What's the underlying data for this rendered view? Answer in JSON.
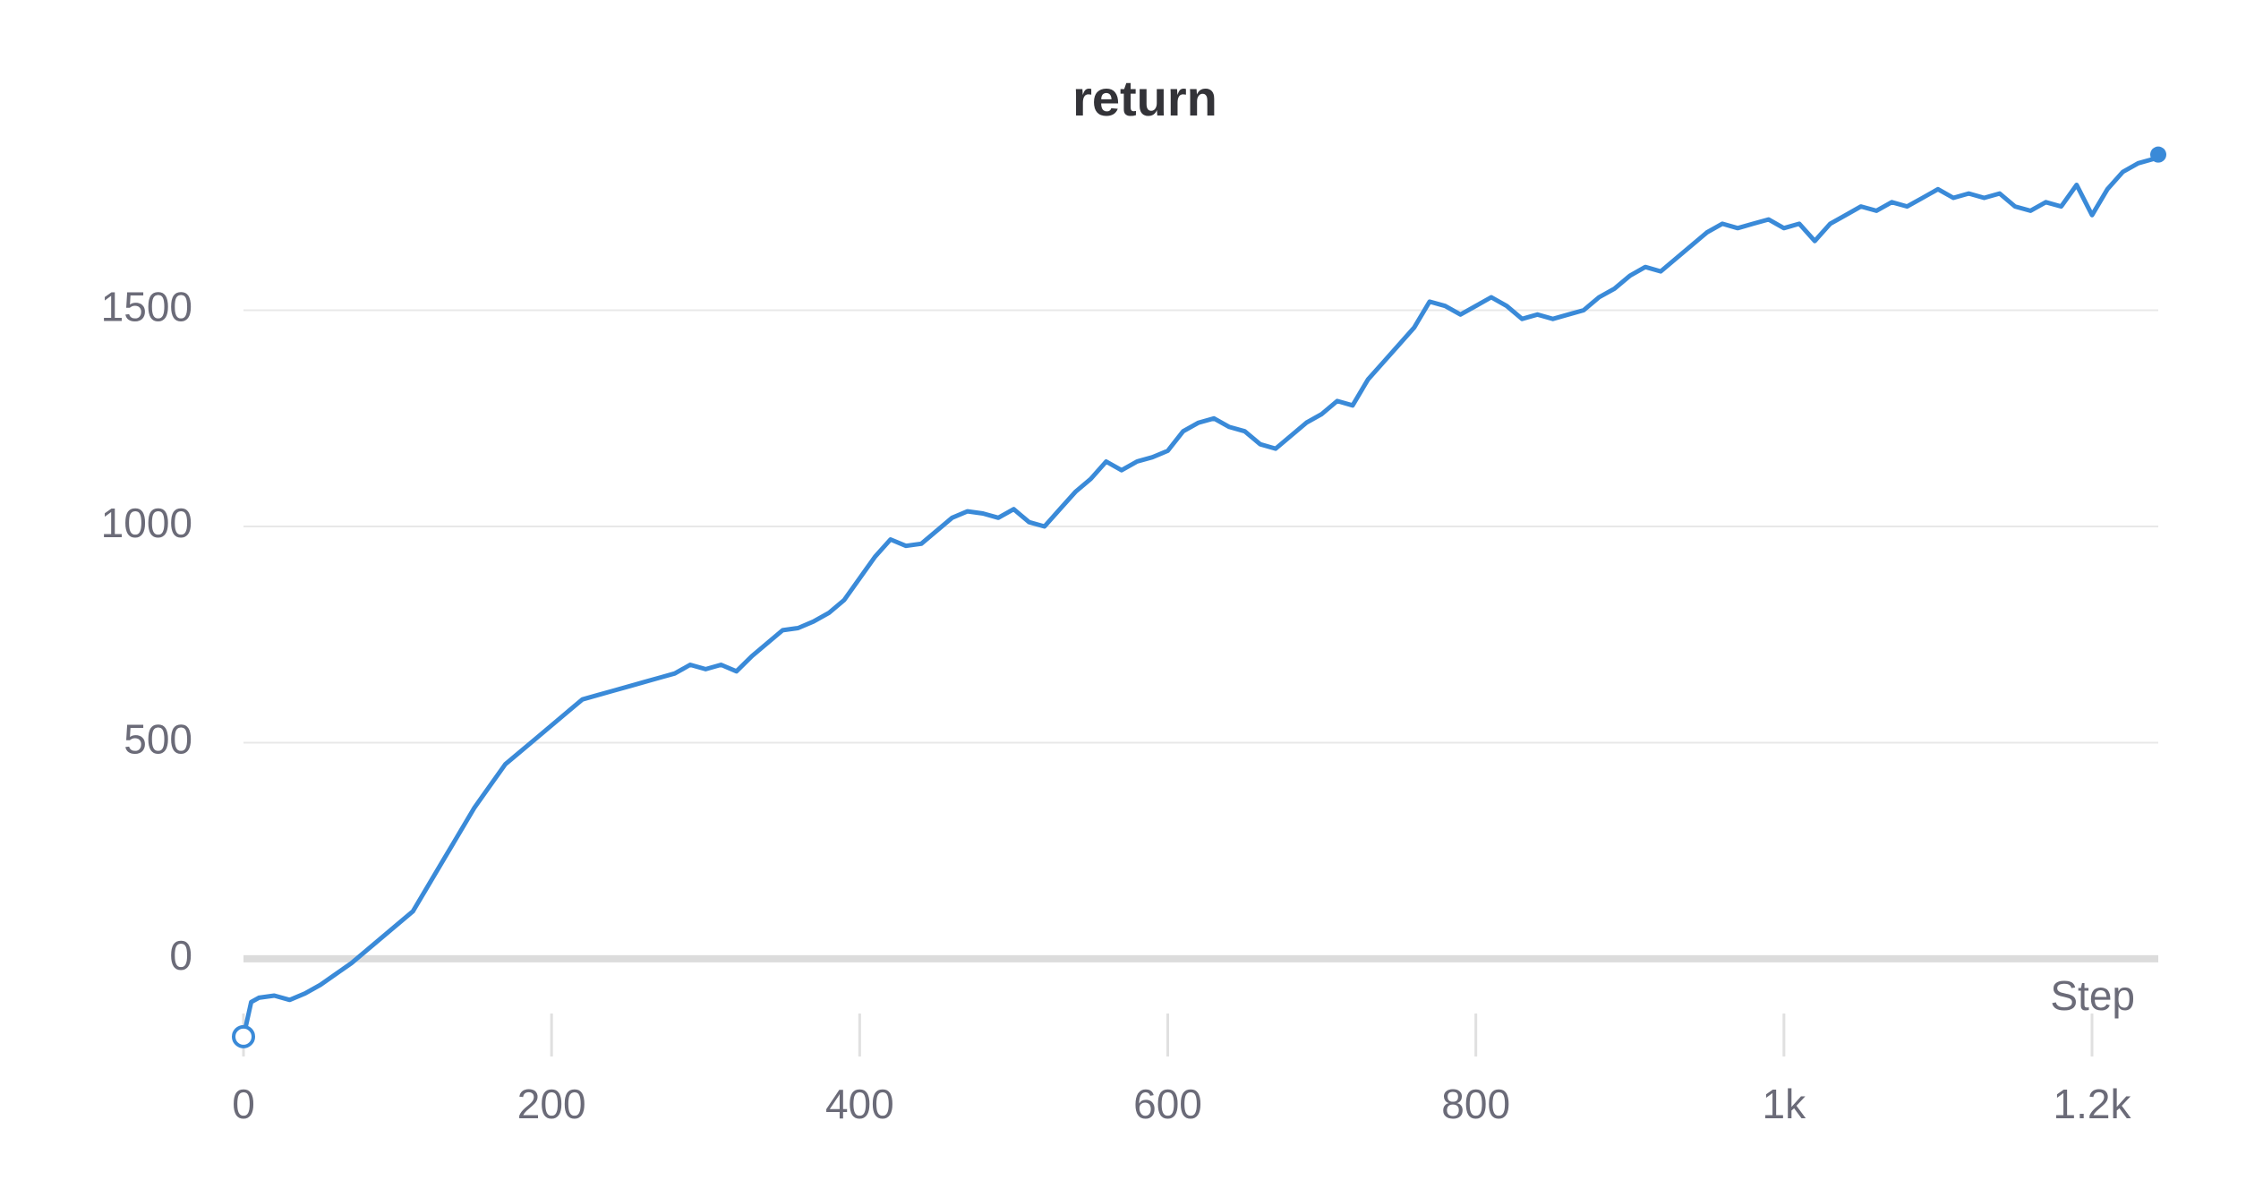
{
  "chart_data": {
    "type": "line",
    "title": "return",
    "xlabel": "Step",
    "x": [
      0,
      5,
      10,
      20,
      30,
      40,
      50,
      60,
      70,
      80,
      90,
      100,
      110,
      120,
      130,
      140,
      150,
      160,
      170,
      180,
      190,
      200,
      210,
      220,
      230,
      240,
      250,
      260,
      270,
      280,
      290,
      300,
      310,
      320,
      330,
      340,
      350,
      360,
      370,
      380,
      390,
      400,
      410,
      420,
      430,
      440,
      450,
      460,
      470,
      480,
      490,
      500,
      510,
      520,
      530,
      540,
      550,
      560,
      570,
      580,
      590,
      600,
      610,
      620,
      630,
      640,
      650,
      660,
      670,
      680,
      690,
      700,
      710,
      720,
      730,
      740,
      750,
      760,
      770,
      780,
      790,
      800,
      810,
      820,
      830,
      840,
      850,
      860,
      870,
      880,
      890,
      900,
      910,
      920,
      930,
      940,
      950,
      960,
      970,
      980,
      990,
      1000,
      1010,
      1020,
      1030,
      1040,
      1050,
      1060,
      1070,
      1080,
      1090,
      1100,
      1110,
      1120,
      1130,
      1140,
      1150,
      1160,
      1170,
      1180,
      1190,
      1200,
      1210,
      1220,
      1230,
      1240,
      1243
    ],
    "values": [
      -180,
      -100,
      -90,
      -85,
      -95,
      -80,
      -60,
      -35,
      -10,
      20,
      50,
      80,
      110,
      170,
      230,
      290,
      350,
      400,
      450,
      480,
      510,
      540,
      570,
      600,
      610,
      620,
      630,
      640,
      650,
      660,
      680,
      670,
      680,
      665,
      700,
      730,
      760,
      765,
      780,
      800,
      830,
      880,
      930,
      970,
      955,
      960,
      990,
      1020,
      1035,
      1030,
      1020,
      1040,
      1010,
      1000,
      1040,
      1080,
      1110,
      1150,
      1130,
      1150,
      1160,
      1175,
      1220,
      1240,
      1250,
      1230,
      1220,
      1190,
      1180,
      1210,
      1240,
      1260,
      1290,
      1280,
      1340,
      1380,
      1420,
      1460,
      1520,
      1510,
      1490,
      1510,
      1530,
      1510,
      1480,
      1490,
      1480,
      1490,
      1500,
      1530,
      1550,
      1580,
      1600,
      1590,
      1620,
      1650,
      1680,
      1700,
      1690,
      1700,
      1710,
      1690,
      1700,
      1660,
      1700,
      1720,
      1740,
      1730,
      1750,
      1740,
      1760,
      1780,
      1760,
      1770,
      1760,
      1770,
      1740,
      1730,
      1750,
      1740,
      1790,
      1720,
      1780,
      1820,
      1840,
      1850,
      1860
    ],
    "color": "#3a8ad8",
    "xlim": [
      0,
      1243
    ],
    "ylim": [
      -230,
      1880
    ],
    "xticks": [
      0,
      200,
      400,
      600,
      800,
      {
        "value": 1000,
        "label": "1k"
      },
      {
        "value": 1200,
        "label": "1.2k"
      }
    ],
    "yticks": [
      0,
      500,
      1000,
      1500
    ],
    "grid": true
  }
}
